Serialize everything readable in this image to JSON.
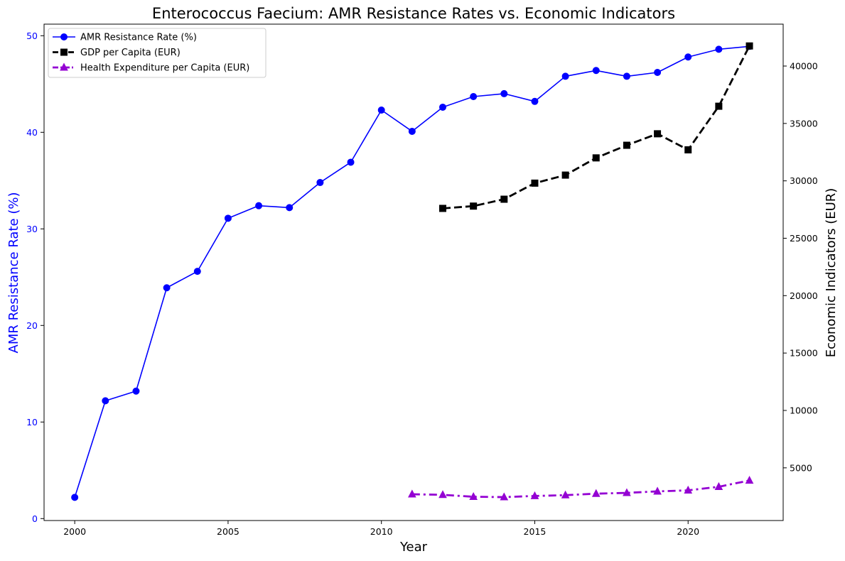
{
  "chart_data": {
    "type": "line",
    "title": "Enterococcus Faecium: AMR Resistance Rates vs. Economic Indicators",
    "xlabel": "Year",
    "ylabel_left": "AMR Resistance Rate (%)",
    "ylabel_right": "Economic Indicators (EUR)",
    "xlim": [
      1999.0,
      2023.1
    ],
    "ylim_left": [
      -0.2,
      51.2
    ],
    "ylim_right": [
      411,
      43650
    ],
    "x_ticks": [
      2000,
      2005,
      2010,
      2015,
      2020
    ],
    "y_left_ticks": [
      0,
      10,
      20,
      30,
      40,
      50
    ],
    "y_right_ticks": [
      5000,
      10000,
      15000,
      20000,
      25000,
      30000,
      35000,
      40000
    ],
    "legend_position": "top-left",
    "grid": false,
    "series": [
      {
        "name": "AMR Resistance Rate (%)",
        "axis": "left",
        "color": "#0000ff",
        "marker": "circle",
        "line_style": "solid",
        "x": [
          2000,
          2001,
          2002,
          2003,
          2004,
          2005,
          2006,
          2007,
          2008,
          2009,
          2010,
          2011,
          2012,
          2013,
          2014,
          2015,
          2016,
          2017,
          2018,
          2019,
          2020,
          2021,
          2022
        ],
        "y": [
          2.2,
          12.2,
          13.2,
          23.9,
          25.6,
          31.1,
          32.4,
          32.2,
          34.8,
          36.9,
          42.3,
          40.1,
          42.6,
          43.7,
          44.0,
          43.2,
          45.8,
          46.4,
          45.8,
          46.2,
          47.8,
          48.6,
          48.9
        ]
      },
      {
        "name": "GDP per Capita (EUR)",
        "axis": "right",
        "color": "#000000",
        "marker": "square",
        "line_style": "dashed",
        "x": [
          2012,
          2013,
          2014,
          2015,
          2016,
          2017,
          2018,
          2019,
          2020,
          2021,
          2022
        ],
        "y": [
          27600,
          27800,
          28400,
          29800,
          30500,
          32000,
          33100,
          34100,
          32700,
          36500,
          41750
        ]
      },
      {
        "name": "Health Expenditure per Capita (EUR)",
        "axis": "right",
        "color": "#9400d3",
        "marker": "triangle",
        "line_style": "dashdot",
        "x": [
          2011,
          2012,
          2013,
          2014,
          2015,
          2016,
          2017,
          2018,
          2019,
          2020,
          2021,
          2022
        ],
        "y": [
          2700,
          2650,
          2480,
          2450,
          2550,
          2620,
          2750,
          2820,
          2950,
          3040,
          3350,
          3900
        ]
      }
    ]
  }
}
